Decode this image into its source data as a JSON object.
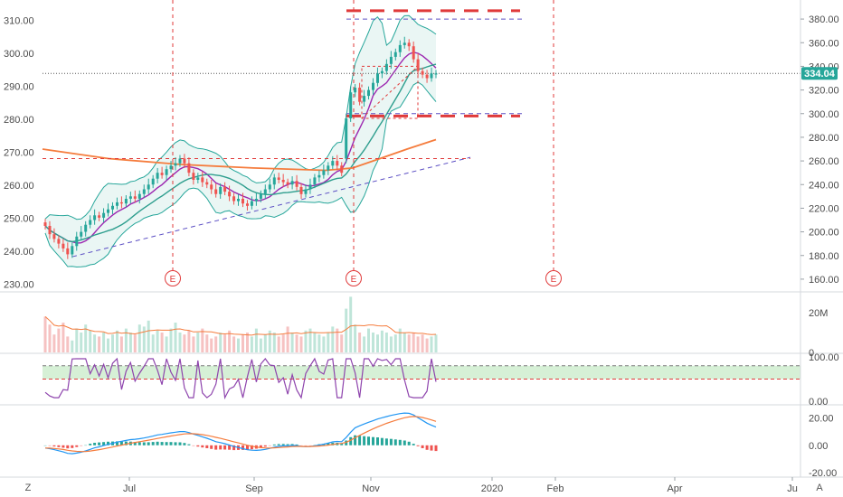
{
  "chart_data": {
    "type": "candlestick",
    "colors": {
      "up": "#26a69a",
      "down": "#ef5350",
      "bb": "#26a69a",
      "bb_fill": "#e6f4f2",
      "ma_purple": "#9c27b0",
      "ma_orange": "#f57c3d",
      "ma_teal": "#2e9e8e",
      "levels": "#e03a3a",
      "trend": "#5c4fc4",
      "rsi": "#8e44ad",
      "rsi_band": "#d6f0d6",
      "macd": "#2196f3",
      "signal": "#f57c3d",
      "grid": "#f0f3f6",
      "axis_text": "#4a4a4a"
    },
    "x_axis": {
      "tick_labels": [
        "Jul",
        "Sep",
        "Nov",
        "2020",
        "Feb",
        "Apr",
        "Ju"
      ]
    },
    "left_axis": {
      "tick_labels": [
        "310.00",
        "300.00",
        "290.00",
        "280.00",
        "270.00",
        "260.00",
        "250.00",
        "240.00",
        "230.00"
      ],
      "ylim": [
        228,
        314
      ]
    },
    "right_axis": {
      "tick_labels": [
        "380.00",
        "360.00",
        "340.00",
        "320.00",
        "300.00",
        "280.00",
        "260.00",
        "240.00",
        "220.00",
        "200.00",
        "180.00",
        "160.00"
      ],
      "ylim": [
        150,
        390
      ]
    },
    "last_price": "334.04",
    "earnings_marker": "E",
    "price_series_right_scale": [
      {
        "c": 205
      },
      {
        "c": 198
      },
      {
        "c": 194
      },
      {
        "c": 190
      },
      {
        "c": 186
      },
      {
        "c": 181
      },
      {
        "c": 188
      },
      {
        "c": 196
      },
      {
        "c": 200
      },
      {
        "c": 206
      },
      {
        "c": 210
      },
      {
        "c": 214
      },
      {
        "c": 212
      },
      {
        "c": 216
      },
      {
        "c": 219
      },
      {
        "c": 222
      },
      {
        "c": 225
      },
      {
        "c": 224
      },
      {
        "c": 228
      },
      {
        "c": 230
      },
      {
        "c": 228
      },
      {
        "c": 232
      },
      {
        "c": 236
      },
      {
        "c": 240
      },
      {
        "c": 245
      },
      {
        "c": 250
      },
      {
        "c": 248
      },
      {
        "c": 253
      },
      {
        "c": 256
      },
      {
        "c": 258
      },
      {
        "c": 262
      },
      {
        "c": 258
      },
      {
        "c": 250
      },
      {
        "c": 244
      },
      {
        "c": 246
      },
      {
        "c": 242
      },
      {
        "c": 240
      },
      {
        "c": 236
      },
      {
        "c": 232
      },
      {
        "c": 238
      },
      {
        "c": 234
      },
      {
        "c": 230
      },
      {
        "c": 226
      },
      {
        "c": 228
      },
      {
        "c": 224
      },
      {
        "c": 222
      },
      {
        "c": 226
      },
      {
        "c": 228
      },
      {
        "c": 232
      },
      {
        "c": 236
      },
      {
        "c": 240
      },
      {
        "c": 246
      },
      {
        "c": 244
      },
      {
        "c": 242
      },
      {
        "c": 240
      },
      {
        "c": 243
      },
      {
        "c": 238
      },
      {
        "c": 232
      },
      {
        "c": 236
      },
      {
        "c": 240
      },
      {
        "c": 246
      },
      {
        "c": 248
      },
      {
        "c": 252
      },
      {
        "c": 256
      },
      {
        "c": 260
      },
      {
        "c": 256
      },
      {
        "c": 250
      },
      {
        "c": 296
      },
      {
        "c": 318
      },
      {
        "c": 322
      },
      {
        "c": 310
      },
      {
        "c": 315
      },
      {
        "c": 320
      },
      {
        "c": 326
      },
      {
        "c": 334
      },
      {
        "c": 336
      },
      {
        "c": 342
      },
      {
        "c": 348
      },
      {
        "c": 352
      },
      {
        "c": 358
      },
      {
        "c": 360
      },
      {
        "c": 357
      },
      {
        "c": 346
      },
      {
        "c": 336
      },
      {
        "c": 333
      },
      {
        "c": 330
      },
      {
        "c": 334
      },
      {
        "c": 334
      }
    ],
    "volume": {
      "tick_labels": [
        "20M",
        "0"
      ],
      "ylim": [
        0,
        30
      ],
      "values": [
        18,
        14,
        9,
        12,
        15,
        8,
        6,
        12,
        10,
        14,
        11,
        9,
        8,
        10,
        7,
        9,
        11,
        8,
        12,
        10,
        9,
        14,
        13,
        16,
        9,
        11,
        10,
        8,
        12,
        15,
        10,
        9,
        11,
        8,
        10,
        12,
        9,
        7,
        8,
        10,
        9,
        11,
        8,
        7,
        9,
        10,
        8,
        12,
        7,
        9,
        11,
        10,
        8,
        9,
        13,
        10,
        9,
        8,
        11,
        12,
        10,
        9,
        8,
        10,
        13,
        12,
        9,
        22,
        28,
        14,
        10,
        8,
        12,
        10,
        9,
        11,
        10,
        8,
        9,
        12,
        10,
        9,
        10,
        8,
        9,
        7,
        8,
        9
      ]
    },
    "rsi": {
      "tick_labels": [
        "100.00",
        "0.00"
      ],
      "ylim": [
        0,
        100
      ],
      "band": [
        50,
        80
      ]
    },
    "macd": {
      "tick_labels": [
        "20.00",
        "0.00",
        "-20.00"
      ],
      "ylim": [
        -22,
        25
      ]
    }
  },
  "ui": {
    "corner_left": "Z",
    "corner_right": "A"
  }
}
